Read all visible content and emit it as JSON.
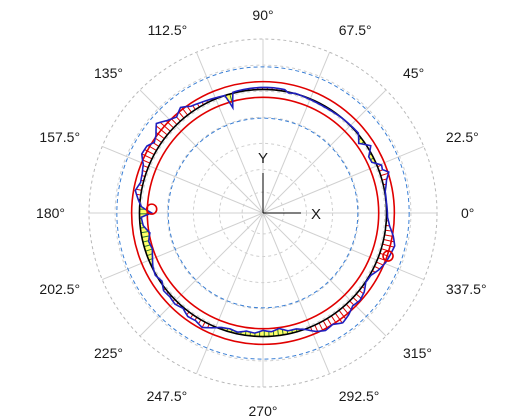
{
  "chart_data": {
    "type": "polar",
    "title": "",
    "angle_unit": "deg",
    "angle_ticks": [
      "0°",
      "22.5°",
      "45°",
      "67.5°",
      "90°",
      "112.5°",
      "135°",
      "157.5°",
      "180°",
      "202.5°",
      "225°",
      "247.5°",
      "270°",
      "292.5°",
      "315°",
      "337.5°"
    ],
    "angle_tick_values": [
      0,
      22.5,
      45,
      67.5,
      90,
      112.5,
      135,
      157.5,
      180,
      202.5,
      225,
      247.5,
      270,
      292.5,
      315,
      337.5
    ],
    "grid": true,
    "axis_labels": {
      "x": "X",
      "y": "Y"
    },
    "reference_circles": [
      {
        "role": "outer-tolerance",
        "color": "#e00000",
        "radius": 0.755
      },
      {
        "role": "inner-tolerance",
        "color": "#e00000",
        "radius": 0.665
      },
      {
        "role": "reference",
        "color": "#000000",
        "radius": 0.71
      },
      {
        "role": "dashed-upper",
        "color": "#3a7fd5",
        "radius": 0.84
      },
      {
        "role": "dashed-lower",
        "color": "#3a7fd5",
        "radius": 0.545
      }
    ],
    "series": [
      {
        "role": "measured-profile",
        "color": "#1f1fbf",
        "points": [
          [
            0,
            0.715
          ],
          [
            5,
            0.712
          ],
          [
            10,
            0.713
          ],
          [
            15,
            0.735
          ],
          [
            18,
            0.76
          ],
          [
            20,
            0.73
          ],
          [
            22,
            0.735
          ],
          [
            25,
            0.69
          ],
          [
            28,
            0.688
          ],
          [
            32,
            0.73
          ],
          [
            36,
            0.68
          ],
          [
            40,
            0.715
          ],
          [
            45,
            0.712
          ],
          [
            50,
            0.71
          ],
          [
            55,
            0.706
          ],
          [
            60,
            0.704
          ],
          [
            65,
            0.705
          ],
          [
            70,
            0.708
          ],
          [
            75,
            0.712
          ],
          [
            78,
            0.705
          ],
          [
            80,
            0.72
          ],
          [
            85,
            0.722
          ],
          [
            90,
            0.722
          ],
          [
            95,
            0.72
          ],
          [
            100,
            0.718
          ],
          [
            104,
            0.715
          ],
          [
            106,
            0.63
          ],
          [
            108,
            0.71
          ],
          [
            112,
            0.715
          ],
          [
            116,
            0.722
          ],
          [
            120,
            0.73
          ],
          [
            124,
            0.74
          ],
          [
            128,
            0.77
          ],
          [
            132,
            0.742
          ],
          [
            136,
            0.765
          ],
          [
            140,
            0.8
          ],
          [
            144,
            0.76
          ],
          [
            147,
            0.745
          ],
          [
            150,
            0.77
          ],
          [
            154,
            0.775
          ],
          [
            158,
            0.742
          ],
          [
            162,
            0.73
          ],
          [
            166,
            0.725
          ],
          [
            170,
            0.745
          ],
          [
            174,
            0.72
          ],
          [
            177,
            0.7
          ],
          [
            180,
            0.64
          ],
          [
            182,
            0.7
          ],
          [
            186,
            0.692
          ],
          [
            190,
            0.66
          ],
          [
            194,
            0.677
          ],
          [
            198,
            0.668
          ],
          [
            202,
            0.685
          ],
          [
            206,
            0.704
          ],
          [
            210,
            0.715
          ],
          [
            214,
            0.7
          ],
          [
            218,
            0.725
          ],
          [
            222,
            0.72
          ],
          [
            226,
            0.728
          ],
          [
            230,
            0.715
          ],
          [
            234,
            0.735
          ],
          [
            238,
            0.73
          ],
          [
            242,
            0.745
          ],
          [
            246,
            0.722
          ],
          [
            250,
            0.7
          ],
          [
            254,
            0.692
          ],
          [
            258,
            0.7
          ],
          [
            262,
            0.685
          ],
          [
            266,
            0.692
          ],
          [
            270,
            0.675
          ],
          [
            274,
            0.684
          ],
          [
            278,
            0.67
          ],
          [
            282,
            0.692
          ],
          [
            286,
            0.693
          ],
          [
            290,
            0.712
          ],
          [
            294,
            0.745
          ],
          [
            298,
            0.765
          ],
          [
            302,
            0.755
          ],
          [
            306,
            0.78
          ],
          [
            310,
            0.765
          ],
          [
            314,
            0.742
          ],
          [
            318,
            0.75
          ],
          [
            322,
            0.738
          ],
          [
            326,
            0.712
          ],
          [
            330,
            0.716
          ],
          [
            334,
            0.742
          ],
          [
            338,
            0.76
          ],
          [
            342,
            0.77
          ],
          [
            346,
            0.78
          ],
          [
            350,
            0.76
          ],
          [
            354,
            0.732
          ],
          [
            358,
            0.716
          ]
        ]
      }
    ],
    "fill_above_color": "#e00000",
    "fill_below_color": "#ffff66",
    "markers": [
      {
        "angle": 178,
        "radius": 0.64,
        "color": "#e00000"
      },
      {
        "angle": 341,
        "radius": 0.76,
        "color": "#e00000"
      }
    ]
  }
}
